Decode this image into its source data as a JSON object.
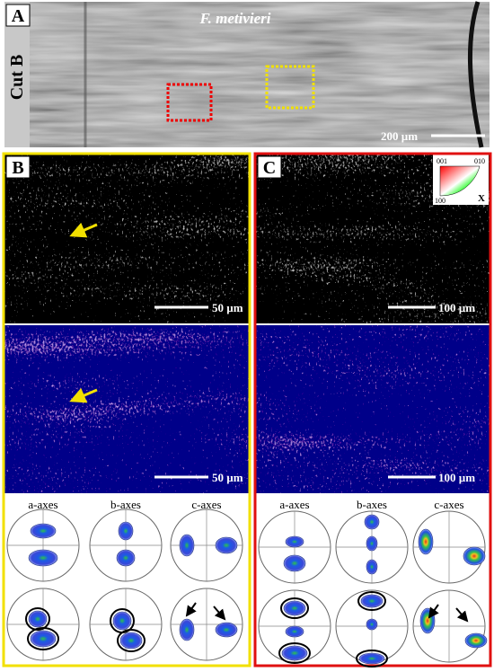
{
  "panel_a": {
    "label": "A",
    "cut": "Cut B",
    "species": "F. metivieri",
    "scale": "200 µm"
  },
  "panel_b": {
    "label": "B",
    "scale_top": "50 µm",
    "scale_bottom": "50 µm",
    "axes": [
      "a-axes",
      "b-axes",
      "c-axes"
    ]
  },
  "panel_c": {
    "label": "C",
    "scale_top": "100 µm",
    "scale_bottom": "100 µm",
    "axes": [
      "a-axes",
      "b-axes",
      "c-axes"
    ],
    "ipf_key": {
      "top_left": "001",
      "top_right": "010",
      "bottom_left": "100",
      "axis": "X"
    }
  }
}
